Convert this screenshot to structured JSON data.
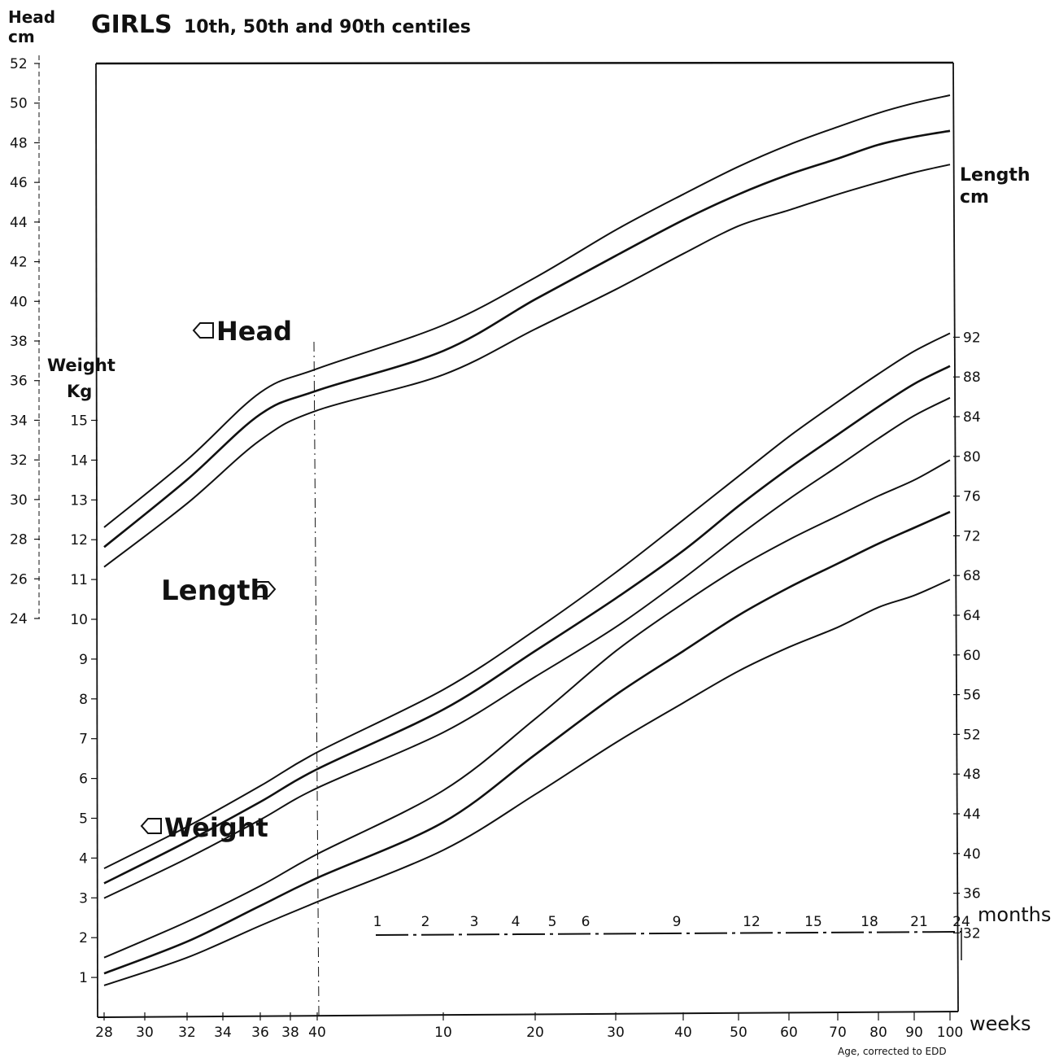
{
  "chart_data": {
    "type": "line",
    "title": "GIRLS",
    "subtitle": "10th, 50th and 90th centiles",
    "axes": {
      "head": {
        "label_line1": "Head",
        "label_line2": "cm",
        "range": [
          24,
          52
        ],
        "ticks": [
          24,
          26,
          28,
          30,
          32,
          34,
          36,
          38,
          40,
          42,
          44,
          46,
          48,
          50,
          52
        ]
      },
      "weight": {
        "label_line1": "Weight",
        "label_line2": "Kg",
        "range": [
          0,
          15
        ],
        "ticks": [
          1,
          2,
          3,
          4,
          5,
          6,
          7,
          8,
          9,
          10,
          11,
          12,
          13,
          14,
          15
        ]
      },
      "length": {
        "label_line1": "Length",
        "label_line2": "cm",
        "range": [
          24,
          92
        ],
        "ticks": [
          32,
          36,
          40,
          44,
          48,
          52,
          56,
          60,
          64,
          68,
          72,
          76,
          80,
          84,
          88,
          92
        ]
      },
      "age_weeks": {
        "unit_label": "weeks",
        "preterm_ticks": [
          28,
          30,
          32,
          34,
          36,
          38,
          40
        ],
        "postterm_ticks": [
          10,
          20,
          30,
          40,
          50,
          60,
          70,
          80,
          90,
          100
        ]
      },
      "age_months": {
        "unit_label": "months",
        "ticks": [
          1,
          2,
          3,
          4,
          5,
          6,
          9,
          12,
          15,
          18,
          21,
          24
        ]
      }
    },
    "xlabel": "Age, corrected to EDD",
    "curve_labels": {
      "head": "Head",
      "length": "Length",
      "weight": "Weight"
    },
    "x_weeks": [
      28,
      32,
      36,
      40,
      50,
      60,
      70,
      80,
      90,
      100,
      110,
      120,
      130,
      140
    ],
    "series": [
      {
        "group": "head",
        "centile": 90,
        "values": [
          28.6,
          32.0,
          35.4,
          36.6,
          38.8,
          41.2,
          43.6,
          45.4,
          46.8,
          47.9,
          48.8,
          49.5,
          50.0,
          50.4
        ]
      },
      {
        "group": "head",
        "centile": 50,
        "values": [
          27.6,
          31.0,
          34.3,
          35.5,
          37.5,
          40.1,
          42.3,
          44.1,
          45.4,
          46.4,
          47.2,
          47.9,
          48.3,
          48.6
        ]
      },
      {
        "group": "head",
        "centile": 10,
        "values": [
          26.6,
          29.8,
          33.0,
          34.5,
          36.3,
          38.6,
          40.6,
          42.4,
          43.8,
          44.6,
          45.4,
          46.0,
          46.5,
          46.9
        ]
      },
      {
        "group": "length",
        "centile": 90,
        "values": [
          38.5,
          42.7,
          46.8,
          50.2,
          56.5,
          62.5,
          68.3,
          73.6,
          78.0,
          82.0,
          85.5,
          88.3,
          90.6,
          92.4
        ]
      },
      {
        "group": "length",
        "centile": 50,
        "values": [
          37.0,
          41.2,
          45.2,
          48.5,
          54.5,
          60.4,
          65.7,
          70.5,
          75.0,
          78.8,
          82.2,
          85.0,
          87.3,
          89.1
        ]
      },
      {
        "group": "length",
        "centile": 10,
        "values": [
          35.5,
          39.5,
          43.4,
          46.6,
          52.2,
          57.8,
          62.8,
          67.7,
          72.0,
          75.7,
          79.0,
          81.8,
          84.1,
          85.9
        ]
      },
      {
        "group": "weight",
        "centile": 90,
        "values": [
          1.5,
          2.4,
          3.3,
          4.1,
          5.7,
          7.5,
          9.2,
          10.4,
          11.3,
          12.0,
          12.6,
          13.1,
          13.5,
          14.0
        ]
      },
      {
        "group": "weight",
        "centile": 50,
        "values": [
          1.1,
          1.9,
          2.8,
          3.5,
          4.9,
          6.6,
          8.1,
          9.2,
          10.1,
          10.8,
          11.4,
          11.9,
          12.3,
          12.7
        ]
      },
      {
        "group": "weight",
        "centile": 10,
        "values": [
          0.8,
          1.5,
          2.3,
          2.9,
          4.2,
          5.6,
          6.9,
          7.9,
          8.7,
          9.3,
          9.8,
          10.3,
          10.6,
          11.0
        ]
      }
    ],
    "grid": false,
    "style": {
      "line_color": "#111111",
      "background": "#ffffff"
    }
  }
}
